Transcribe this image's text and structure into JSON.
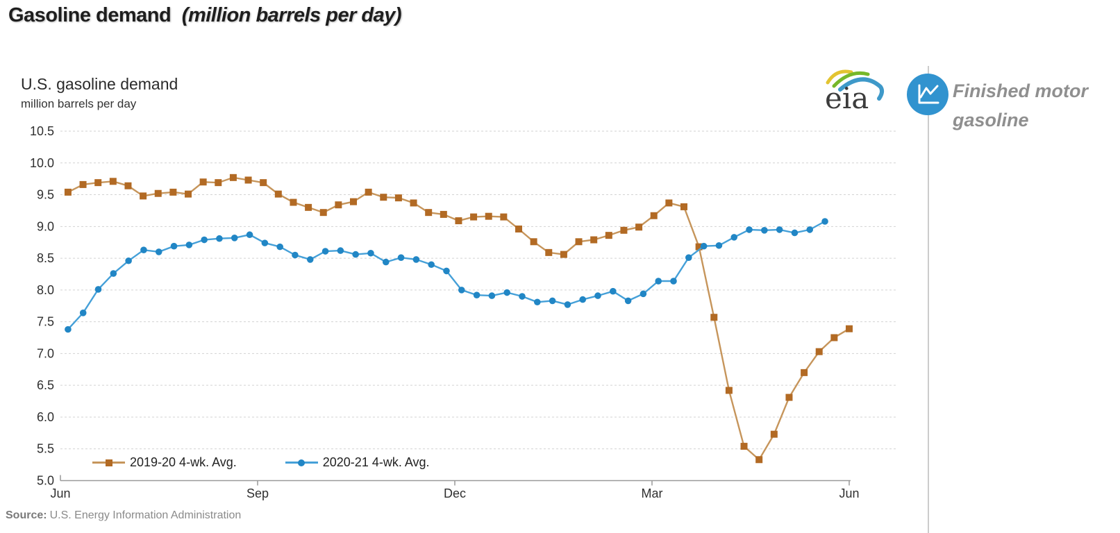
{
  "page": {
    "title": "Gasoline demand",
    "title_note": "(million barrels per day)"
  },
  "source": {
    "label": "Source:",
    "text": "U.S. Energy Information Administration"
  },
  "logo": {
    "text": "eia"
  },
  "side_panel": {
    "label": "Finished motor gasoline",
    "icon": "line-chart-icon",
    "icon_color": "#3193cf"
  },
  "chart_data": {
    "type": "line",
    "title": "U.S. gasoline demand",
    "subtitle": "million barrels per day",
    "ylabel": "million barrels per day",
    "ylim": [
      5.0,
      10.5
    ],
    "ytick_step": 0.5,
    "weeks_total": 52,
    "grid": "horizontal dashed",
    "legend_position": "inside bottom-left",
    "xticks": [
      {
        "label": "Jun",
        "week": 0
      },
      {
        "label": "Sep",
        "week": 13
      },
      {
        "label": "Dec",
        "week": 26
      },
      {
        "label": "Mar",
        "week": 39
      },
      {
        "label": "Jun",
        "week": 52
      }
    ],
    "series": [
      {
        "name": "2019-20  4-wk. Avg.",
        "marker": "square",
        "marker_color": "#b26a24",
        "line_color": "#c6955b",
        "start_week": 0.5,
        "end_week": 52,
        "values": [
          9.54,
          9.66,
          9.69,
          9.71,
          9.64,
          9.48,
          9.52,
          9.54,
          9.51,
          9.7,
          9.69,
          9.77,
          9.73,
          9.69,
          9.51,
          9.38,
          9.3,
          9.22,
          9.34,
          9.39,
          9.54,
          9.46,
          9.45,
          9.37,
          9.22,
          9.19,
          9.09,
          9.15,
          9.16,
          9.15,
          8.96,
          8.76,
          8.59,
          8.56,
          8.76,
          8.79,
          8.86,
          8.94,
          8.99,
          9.17,
          9.37,
          9.31,
          8.68,
          7.57,
          6.42,
          5.54,
          5.33,
          5.73,
          6.31,
          6.7,
          7.03,
          7.25,
          7.39
        ]
      },
      {
        "name": "2020-21  4-wk. Avg.",
        "marker": "circle",
        "marker_color": "#2186c5",
        "line_color": "#45a0d8",
        "start_week": 0.5,
        "end_week": 50.4,
        "values": [
          7.38,
          7.64,
          8.01,
          8.26,
          8.46,
          8.63,
          8.6,
          8.69,
          8.71,
          8.79,
          8.81,
          8.82,
          8.87,
          8.74,
          8.68,
          8.55,
          8.48,
          8.61,
          8.62,
          8.56,
          8.58,
          8.44,
          8.51,
          8.48,
          8.4,
          8.3,
          8.0,
          7.92,
          7.91,
          7.96,
          7.9,
          7.81,
          7.83,
          7.77,
          7.85,
          7.91,
          7.98,
          7.83,
          7.94,
          8.14,
          8.14,
          8.51,
          8.69,
          8.7,
          8.83,
          8.95,
          8.94,
          8.95,
          8.9,
          8.95,
          9.08
        ]
      }
    ]
  }
}
